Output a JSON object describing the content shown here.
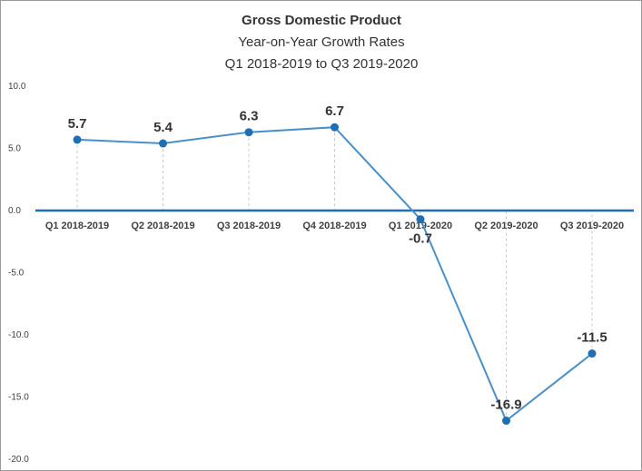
{
  "chart_data": {
    "type": "line",
    "title": "Gross Domestic Product",
    "subtitle_lines": [
      "Year-on-Year Growth Rates",
      "Q1 2018-2019 to Q3 2019-2020"
    ],
    "categories": [
      "Q1 2018-2019",
      "Q2 2018-2019",
      "Q3 2018-2019",
      "Q4 2018-2019",
      "Q1 2019-2020",
      "Q2 2019-2020",
      "Q3 2019-2020"
    ],
    "series": [
      {
        "values": [
          5.7,
          5.4,
          6.3,
          6.7,
          -0.7,
          -16.9,
          -11.5
        ]
      }
    ],
    "data_labels": [
      "5.7",
      "5.4",
      "6.3",
      "6.7",
      "-0.7",
      "-16.9",
      "-11.5"
    ],
    "y_ticks": [
      "10.0",
      "5.0",
      "0.0",
      "-5.0",
      "-10.0",
      "-15.0",
      "-20.0"
    ],
    "ylim": [
      -20,
      10
    ],
    "xlabel": "",
    "ylabel": "",
    "grid": false,
    "drop_lines": true,
    "colors": {
      "line": "#4a90c8",
      "marker": "#1f6fb2",
      "axis": "#1f6fb2",
      "dropline": "#c8c8c8"
    }
  }
}
